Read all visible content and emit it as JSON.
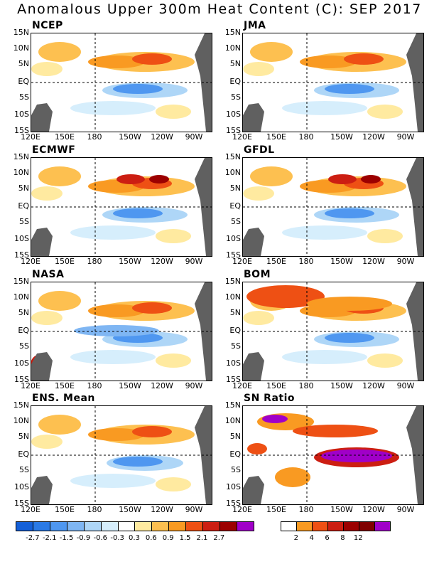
{
  "title": "Anomalous Upper 300m Heat Content (C): SEP 2017",
  "panels": [
    {
      "name": "NCEP"
    },
    {
      "name": "JMA"
    },
    {
      "name": "ECMWF"
    },
    {
      "name": "GFDL"
    },
    {
      "name": "NASA"
    },
    {
      "name": "BOM"
    },
    {
      "name": "ENS. Mean"
    },
    {
      "name": "SN Ratio"
    }
  ],
  "lat_labels": [
    "15N",
    "10N",
    "5N",
    "EQ",
    "5S",
    "10S",
    "15S"
  ],
  "lon_labels": [
    "120E",
    "150E",
    "180",
    "150W",
    "120W",
    "90W"
  ],
  "anomaly_colorbar": {
    "colors": [
      "#1560d8",
      "#2b7ae6",
      "#4f97f0",
      "#7fb6f3",
      "#aed6f7",
      "#d6eefc",
      "#ffffff",
      "#ffeaa0",
      "#fdc050",
      "#f99a22",
      "#ee5014",
      "#cc1e12",
      "#9c0000",
      "#a000c8"
    ],
    "labels": [
      "-2.7",
      "-2.1",
      "-1.5",
      "-0.9",
      "-0.6",
      "-0.3",
      "0.3",
      "0.6",
      "0.9",
      "1.5",
      "2.1",
      "2.7"
    ]
  },
  "sn_colorbar": {
    "colors": [
      "#ffffff",
      "#f99a22",
      "#ee5014",
      "#cc1e12",
      "#9c0000",
      "#800000",
      "#a000c8"
    ],
    "labels": [
      "2",
      "4",
      "6",
      "8",
      "12"
    ]
  },
  "colors": {
    "land": "#606060",
    "panel_bg": "#ffffff"
  }
}
